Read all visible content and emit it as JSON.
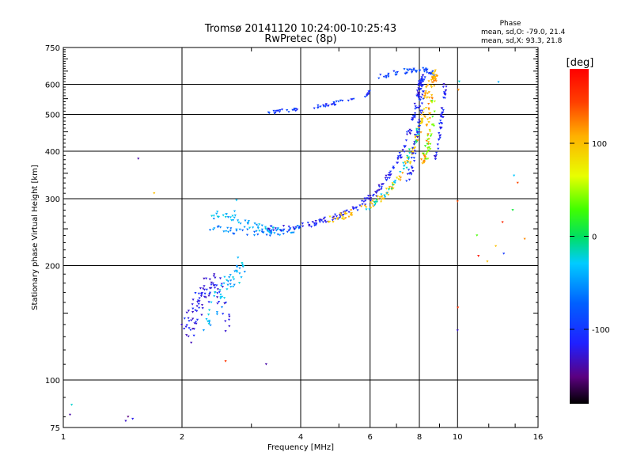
{
  "chart_data": {
    "type": "scatter",
    "title": "Tromsø 20141120 10:24:00-10:25:43",
    "subtitle": "RwPretec (8p)",
    "xlabel": "Frequency [MHz]",
    "ylabel": "Stationary phase Virtual Height [km]",
    "x_scale": "log",
    "y_scale": "log",
    "xlim": [
      1,
      16
    ],
    "ylim": [
      75,
      750
    ],
    "xticks": [
      1,
      2,
      4,
      6,
      8,
      10,
      16
    ],
    "yticks": [
      75,
      100,
      200,
      300,
      400,
      500,
      600,
      750
    ],
    "grid": true,
    "stats": {
      "heading": "Phase",
      "line_o": "mean, sd,O: -79.0, 21.4",
      "line_x": "mean, sd,X:  93.3, 21.8"
    },
    "colorbar": {
      "label": "[deg]",
      "range": [
        -180,
        180
      ],
      "ticks": [
        100,
        0,
        -100
      ]
    },
    "points": [
      [
        1.04,
        81,
        -140
      ],
      [
        1.44,
        78,
        -130
      ],
      [
        1.46,
        80,
        -150
      ],
      [
        1.5,
        79,
        -120
      ],
      [
        1.55,
        382,
        -140
      ],
      [
        1.7,
        310,
        100
      ],
      [
        1.05,
        86,
        -20
      ],
      [
        2.58,
        112,
        150
      ],
      [
        3.27,
        110,
        -140
      ],
      [
        2.75,
        297,
        -30
      ],
      [
        2.72,
        278,
        -40
      ],
      [
        10.0,
        295,
        140
      ],
      [
        10.05,
        580,
        120
      ],
      [
        10.1,
        610,
        -20
      ],
      [
        12.7,
        608,
        -40
      ],
      [
        10.0,
        135,
        -130
      ],
      [
        10.02,
        155,
        150
      ],
      [
        13.9,
        345,
        -30
      ],
      [
        14.2,
        330,
        140
      ],
      [
        13.8,
        280,
        10
      ],
      [
        11.2,
        240,
        30
      ],
      [
        11.9,
        205,
        100
      ],
      [
        12.5,
        225,
        100
      ],
      [
        13.1,
        215,
        -100
      ],
      [
        14.8,
        235,
        120
      ],
      [
        11.3,
        212,
        170
      ],
      [
        13.0,
        260,
        160
      ]
    ],
    "traces": [
      {
        "f": [
          2.35,
          2.5,
          2.8,
          3.0,
          3.3,
          3.6,
          4.0
        ],
        "h": [
          272,
          270,
          262,
          255,
          248,
          248,
          252
        ],
        "phase": -40,
        "n": 55,
        "jitter": 0.05
      },
      {
        "f": [
          2.35,
          2.6,
          2.9,
          3.2,
          3.6,
          4.0
        ],
        "h": [
          250,
          248,
          245,
          244,
          245,
          252
        ],
        "phase": -60,
        "n": 45,
        "jitter": 0.04
      },
      {
        "f": [
          3.3,
          3.8,
          4.2,
          4.6,
          5.0,
          5.4,
          5.8,
          6.2,
          6.6,
          7.0,
          7.4,
          7.7,
          7.9,
          8.0,
          8.1
        ],
        "h": [
          250,
          252,
          256,
          262,
          270,
          280,
          292,
          310,
          335,
          370,
          420,
          480,
          540,
          590,
          630
        ],
        "phase": -115,
        "n": 180,
        "jitter": 0.035
      },
      {
        "f": [
          4.5,
          5.0,
          5.5,
          6.0,
          6.5,
          7.0,
          7.4,
          7.8,
          8.1,
          8.3,
          8.4
        ],
        "h": [
          262,
          268,
          276,
          288,
          305,
          330,
          365,
          410,
          470,
          540,
          610
        ],
        "phase": 100,
        "n": 110,
        "jitter": 0.04
      },
      {
        "f": [
          5.8,
          6.2,
          6.6,
          7.0,
          7.4,
          7.8,
          8.0
        ],
        "h": [
          280,
          292,
          310,
          335,
          370,
          420,
          470
        ],
        "phase": -20,
        "n": 40,
        "jitter": 0.04
      },
      {
        "f": [
          3.3,
          3.6,
          4.0,
          4.6,
          5.2,
          5.8,
          6.0
        ],
        "h": [
          505,
          510,
          515,
          528,
          542,
          560,
          575
        ],
        "phase": -100,
        "n": 55,
        "jitter": 0.02
      },
      {
        "f": [
          6.2,
          6.8,
          7.4,
          7.9,
          8.4,
          8.8
        ],
        "h": [
          622,
          640,
          650,
          655,
          650,
          640
        ],
        "phase": -90,
        "n": 50,
        "jitter": 0.03
      },
      {
        "f": [
          7.5,
          7.7,
          7.9,
          8.0,
          8.1,
          8.2
        ],
        "h": [
          330,
          380,
          440,
          500,
          560,
          640
        ],
        "phase": -110,
        "n": 60,
        "jitter": 0.04
      },
      {
        "f": [
          8.1,
          8.3,
          8.4,
          8.5,
          8.6,
          8.7,
          8.8
        ],
        "h": [
          360,
          400,
          460,
          520,
          580,
          620,
          640
        ],
        "phase": 110,
        "n": 70,
        "jitter": 0.05
      },
      {
        "f": [
          8.8,
          9.0,
          9.2,
          9.3
        ],
        "h": [
          380,
          450,
          520,
          600
        ],
        "phase": -115,
        "n": 45,
        "jitter": 0.03
      },
      {
        "f": [
          8.3,
          8.5,
          8.7
        ],
        "h": [
          380,
          450,
          540
        ],
        "phase": 40,
        "n": 25,
        "jitter": 0.06
      },
      {
        "f": [
          2.05,
          2.1,
          2.2,
          2.3,
          2.4,
          2.5,
          2.6
        ],
        "h": [
          130,
          145,
          160,
          175,
          180,
          170,
          130
        ],
        "phase": -120,
        "n": 90,
        "jitter": 0.12
      },
      {
        "f": [
          2.3,
          2.45,
          2.6,
          2.75,
          2.85
        ],
        "h": [
          140,
          160,
          178,
          190,
          200
        ],
        "phase": -40,
        "n": 55,
        "jitter": 0.1
      }
    ]
  }
}
